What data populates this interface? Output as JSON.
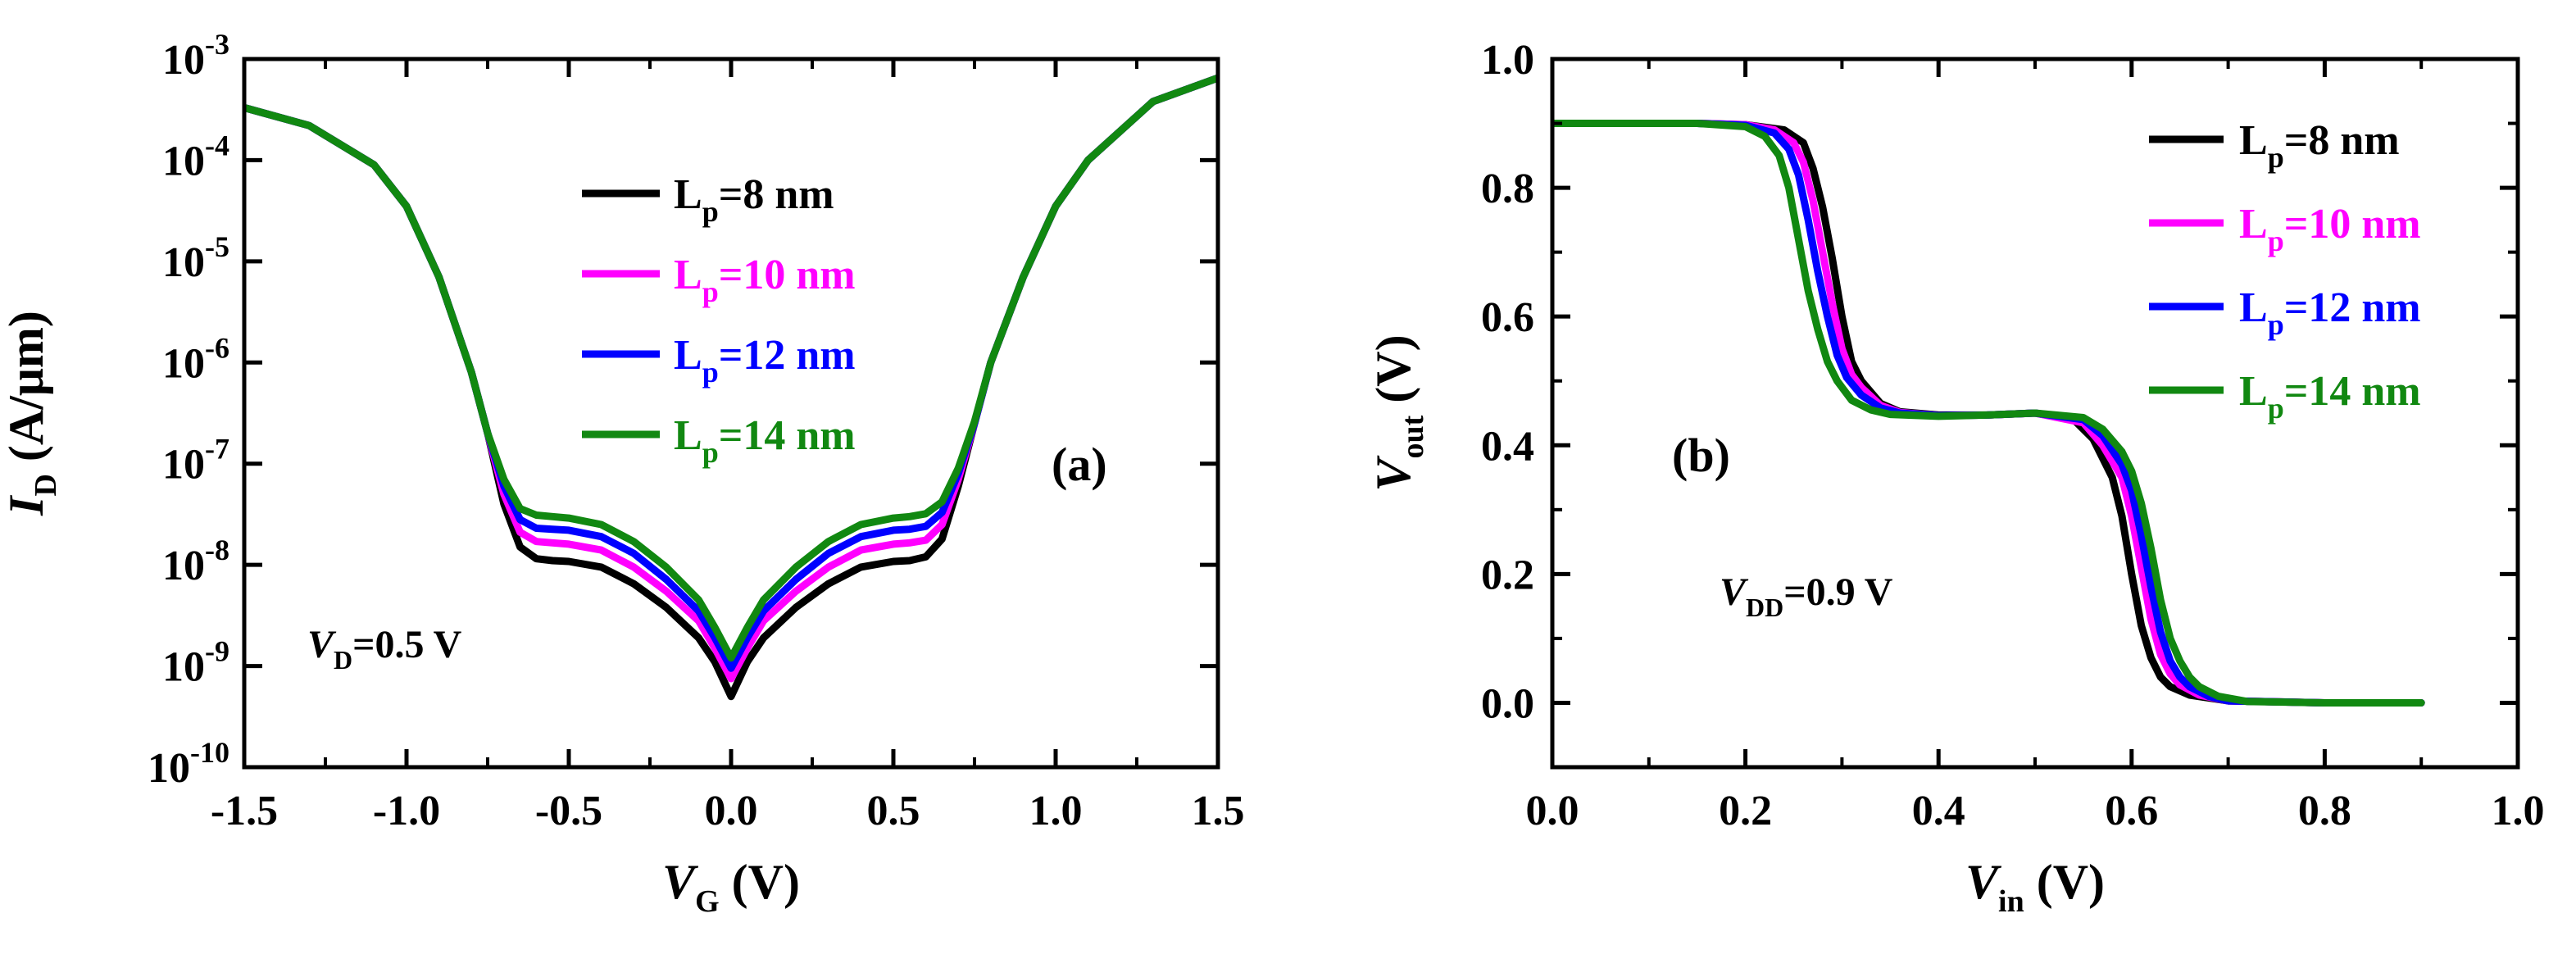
{
  "chart_data": [
    {
      "type": "line",
      "panel_label": "(a)",
      "yscale": "log",
      "xlabel": {
        "var": "V",
        "sub": "G",
        "unit": " (V)"
      },
      "ylabel": {
        "var": "I",
        "sub": "D",
        "unit": " (A/μm)"
      },
      "xlim": [
        -1.5,
        1.5
      ],
      "ylim": [
        1e-10,
        0.001
      ],
      "xticks": [
        -1.5,
        -1.0,
        -0.5,
        0.0,
        0.5,
        1.0,
        1.5
      ],
      "xtick_labels": [
        "-1.5",
        "-1.0",
        "-0.5",
        "0.0",
        "0.5",
        "1.0",
        "1.5"
      ],
      "yticks": [
        1e-10,
        1e-09,
        1e-08,
        1e-07,
        1e-06,
        1e-05,
        0.0001,
        0.001
      ],
      "ytick_labels": [
        {
          "base": "10",
          "exp": "-10"
        },
        {
          "base": "10",
          "exp": "-9"
        },
        {
          "base": "10",
          "exp": "-8"
        },
        {
          "base": "10",
          "exp": "-7"
        },
        {
          "base": "10",
          "exp": "-6"
        },
        {
          "base": "10",
          "exp": "-5"
        },
        {
          "base": "10",
          "exp": "-4"
        },
        {
          "base": "10",
          "exp": "-3"
        }
      ],
      "annotation": {
        "var": "V",
        "sub": "D",
        "text": "=0.5 V"
      },
      "legend_position": "upper-center",
      "series": [
        {
          "name": "Lp=8 nm",
          "label_main": "L",
          "label_sub": "p",
          "label_rest": "=8 nm",
          "color": "#000000",
          "x": [
            -1.5,
            -1.3,
            -1.1,
            -1.0,
            -0.9,
            -0.8,
            -0.75,
            -0.7,
            -0.65,
            -0.6,
            -0.55,
            -0.5,
            -0.4,
            -0.3,
            -0.2,
            -0.1,
            -0.05,
            0.0,
            0.05,
            0.1,
            0.2,
            0.3,
            0.4,
            0.5,
            0.55,
            0.6,
            0.65,
            0.7,
            0.75,
            0.8,
            0.9,
            1.0,
            1.1,
            1.3,
            1.5
          ],
          "y": [
            0.00033,
            0.00022,
            9e-05,
            3.5e-05,
            7e-06,
            8e-07,
            2e-07,
            4e-08,
            1.5e-08,
            1.15e-08,
            1.1e-08,
            1.08e-08,
            9.5e-09,
            6.5e-09,
            3.8e-09,
            1.9e-09,
            1.1e-09,
            5e-10,
            1.1e-09,
            1.9e-09,
            3.8e-09,
            6.5e-09,
            9.5e-09,
            1.08e-08,
            1.1e-08,
            1.2e-08,
            1.8e-08,
            6e-08,
            2.5e-07,
            1e-06,
            7e-06,
            3.5e-05,
            0.0001,
            0.00038,
            0.00065
          ]
        },
        {
          "name": "Lp=10 nm",
          "label_main": "L",
          "label_sub": "p",
          "label_rest": "=10 nm",
          "color": "#ff00ff",
          "x": [
            -1.5,
            -1.3,
            -1.1,
            -1.0,
            -0.9,
            -0.8,
            -0.75,
            -0.7,
            -0.65,
            -0.6,
            -0.55,
            -0.5,
            -0.4,
            -0.3,
            -0.2,
            -0.1,
            -0.05,
            0.0,
            0.05,
            0.1,
            0.2,
            0.3,
            0.4,
            0.5,
            0.55,
            0.6,
            0.65,
            0.7,
            0.75,
            0.8,
            0.9,
            1.0,
            1.1,
            1.3,
            1.5
          ],
          "y": [
            0.00033,
            0.00022,
            9e-05,
            3.5e-05,
            7e-06,
            8e-07,
            2e-07,
            5e-08,
            2.1e-08,
            1.7e-08,
            1.65e-08,
            1.6e-08,
            1.4e-08,
            9.5e-09,
            5.5e-09,
            2.8e-09,
            1.5e-09,
            7.5e-10,
            1.5e-09,
            2.8e-09,
            5.5e-09,
            9.5e-09,
            1.4e-08,
            1.6e-08,
            1.65e-08,
            1.75e-08,
            2.5e-08,
            7e-08,
            2.5e-07,
            1e-06,
            7e-06,
            3.5e-05,
            0.0001,
            0.00038,
            0.00065
          ]
        },
        {
          "name": "Lp=12 nm",
          "label_main": "L",
          "label_sub": "p",
          "label_rest": "=12 nm",
          "color": "#0000ff",
          "x": [
            -1.5,
            -1.3,
            -1.1,
            -1.0,
            -0.9,
            -0.8,
            -0.75,
            -0.7,
            -0.65,
            -0.6,
            -0.55,
            -0.5,
            -0.4,
            -0.3,
            -0.2,
            -0.1,
            -0.05,
            0.0,
            0.05,
            0.1,
            0.2,
            0.3,
            0.4,
            0.5,
            0.55,
            0.6,
            0.65,
            0.7,
            0.75,
            0.8,
            0.9,
            1.0,
            1.1,
            1.3,
            1.5
          ],
          "y": [
            0.00033,
            0.00022,
            9e-05,
            3.5e-05,
            7e-06,
            8e-07,
            2e-07,
            6e-08,
            2.8e-08,
            2.3e-08,
            2.25e-08,
            2.2e-08,
            1.9e-08,
            1.3e-08,
            7.2e-09,
            3.5e-09,
            1.9e-09,
            9.5e-10,
            1.9e-09,
            3.5e-09,
            7.2e-09,
            1.3e-08,
            1.9e-08,
            2.2e-08,
            2.25e-08,
            2.4e-08,
            3.3e-08,
            8e-08,
            2.5e-07,
            1e-06,
            7e-06,
            3.5e-05,
            0.0001,
            0.00038,
            0.00065
          ]
        },
        {
          "name": "Lp=14 nm",
          "label_main": "L",
          "label_sub": "p",
          "label_rest": "=14 nm",
          "color": "#118811",
          "x": [
            -1.5,
            -1.3,
            -1.1,
            -1.0,
            -0.9,
            -0.8,
            -0.75,
            -0.7,
            -0.65,
            -0.6,
            -0.55,
            -0.5,
            -0.4,
            -0.3,
            -0.2,
            -0.1,
            -0.05,
            0.0,
            0.05,
            0.1,
            0.2,
            0.3,
            0.4,
            0.5,
            0.55,
            0.6,
            0.65,
            0.7,
            0.75,
            0.8,
            0.9,
            1.0,
            1.1,
            1.3,
            1.5
          ],
          "y": [
            0.00033,
            0.00022,
            9e-05,
            3.5e-05,
            7e-06,
            8e-07,
            2e-07,
            7e-08,
            3.6e-08,
            3.1e-08,
            3e-08,
            2.9e-08,
            2.5e-08,
            1.7e-08,
            9.5e-09,
            4.5e-09,
            2.4e-09,
            1.2e-09,
            2.4e-09,
            4.5e-09,
            9.5e-09,
            1.7e-08,
            2.5e-08,
            2.9e-08,
            3e-08,
            3.2e-08,
            4.2e-08,
            9e-08,
            2.6e-07,
            1e-06,
            7e-06,
            3.5e-05,
            0.0001,
            0.00038,
            0.00065
          ]
        }
      ]
    },
    {
      "type": "line",
      "panel_label": "(b)",
      "yscale": "linear",
      "xlabel": {
        "var": "V",
        "sub": "in",
        "unit": " (V)"
      },
      "ylabel": {
        "var": "V",
        "sub": "out",
        "unit": " (V)"
      },
      "xlim": [
        0.0,
        1.0
      ],
      "ylim": [
        -0.1,
        1.0
      ],
      "xticks": [
        0.0,
        0.2,
        0.4,
        0.6,
        0.8,
        1.0
      ],
      "xtick_labels": [
        "0.0",
        "0.2",
        "0.4",
        "0.6",
        "0.8",
        "1.0"
      ],
      "yticks": [
        0.0,
        0.2,
        0.4,
        0.6,
        0.8,
        1.0
      ],
      "ytick_labels": [
        "0.0",
        "0.2",
        "0.4",
        "0.6",
        "0.8",
        "1.0"
      ],
      "annotation": {
        "var": "V",
        "sub": "DD",
        "text": "=0.9 V"
      },
      "legend_position": "upper-right",
      "series": [
        {
          "name": "Lp=8 nm",
          "label_main": "L",
          "label_sub": "p",
          "label_rest": "=8 nm",
          "color": "#000000",
          "x": [
            0.0,
            0.15,
            0.2,
            0.24,
            0.26,
            0.27,
            0.28,
            0.29,
            0.3,
            0.31,
            0.32,
            0.34,
            0.36,
            0.4,
            0.45,
            0.5,
            0.54,
            0.56,
            0.58,
            0.59,
            0.6,
            0.61,
            0.62,
            0.63,
            0.64,
            0.66,
            0.7,
            0.8,
            0.9
          ],
          "y": [
            0.9,
            0.9,
            0.898,
            0.89,
            0.87,
            0.83,
            0.77,
            0.69,
            0.6,
            0.53,
            0.5,
            0.465,
            0.452,
            0.447,
            0.447,
            0.45,
            0.44,
            0.41,
            0.35,
            0.29,
            0.2,
            0.12,
            0.07,
            0.04,
            0.025,
            0.012,
            0.003,
            0.0,
            0.0
          ]
        },
        {
          "name": "Lp=10 nm",
          "label_main": "L",
          "label_sub": "p",
          "label_rest": "=10 nm",
          "color": "#ff00ff",
          "x": [
            0.0,
            0.15,
            0.2,
            0.23,
            0.25,
            0.26,
            0.27,
            0.28,
            0.29,
            0.3,
            0.31,
            0.32,
            0.34,
            0.36,
            0.4,
            0.45,
            0.5,
            0.55,
            0.57,
            0.59,
            0.6,
            0.61,
            0.62,
            0.63,
            0.64,
            0.65,
            0.67,
            0.7,
            0.8,
            0.9
          ],
          "y": [
            0.9,
            0.9,
            0.898,
            0.89,
            0.87,
            0.84,
            0.78,
            0.7,
            0.62,
            0.55,
            0.51,
            0.49,
            0.462,
            0.451,
            0.446,
            0.447,
            0.45,
            0.435,
            0.4,
            0.35,
            0.29,
            0.21,
            0.13,
            0.075,
            0.045,
            0.028,
            0.012,
            0.003,
            0.0,
            0.0
          ]
        },
        {
          "name": "Lp=12 nm",
          "label_main": "L",
          "label_sub": "p",
          "label_rest": "=12 nm",
          "color": "#0000ff",
          "x": [
            0.0,
            0.15,
            0.2,
            0.23,
            0.245,
            0.255,
            0.265,
            0.275,
            0.285,
            0.295,
            0.305,
            0.32,
            0.34,
            0.36,
            0.4,
            0.45,
            0.5,
            0.55,
            0.57,
            0.59,
            0.6,
            0.61,
            0.62,
            0.63,
            0.64,
            0.65,
            0.66,
            0.68,
            0.7,
            0.8,
            0.9
          ],
          "y": [
            0.9,
            0.9,
            0.897,
            0.885,
            0.86,
            0.82,
            0.75,
            0.67,
            0.6,
            0.54,
            0.505,
            0.478,
            0.458,
            0.45,
            0.446,
            0.447,
            0.45,
            0.44,
            0.415,
            0.37,
            0.33,
            0.26,
            0.18,
            0.11,
            0.065,
            0.04,
            0.025,
            0.01,
            0.003,
            0.0,
            0.0
          ]
        },
        {
          "name": "Lp=14 nm",
          "label_main": "L",
          "label_sub": "p",
          "label_rest": "=14 nm",
          "color": "#118811",
          "x": [
            0.0,
            0.15,
            0.2,
            0.22,
            0.235,
            0.245,
            0.255,
            0.265,
            0.275,
            0.285,
            0.295,
            0.31,
            0.33,
            0.35,
            0.4,
            0.45,
            0.5,
            0.55,
            0.57,
            0.59,
            0.6,
            0.61,
            0.62,
            0.63,
            0.64,
            0.65,
            0.66,
            0.67,
            0.69,
            0.72,
            0.8,
            0.9
          ],
          "y": [
            0.9,
            0.9,
            0.895,
            0.88,
            0.85,
            0.8,
            0.72,
            0.64,
            0.58,
            0.53,
            0.5,
            0.47,
            0.455,
            0.448,
            0.445,
            0.447,
            0.45,
            0.443,
            0.425,
            0.39,
            0.36,
            0.31,
            0.24,
            0.16,
            0.1,
            0.065,
            0.04,
            0.025,
            0.01,
            0.002,
            0.0,
            0.0
          ]
        }
      ]
    }
  ]
}
